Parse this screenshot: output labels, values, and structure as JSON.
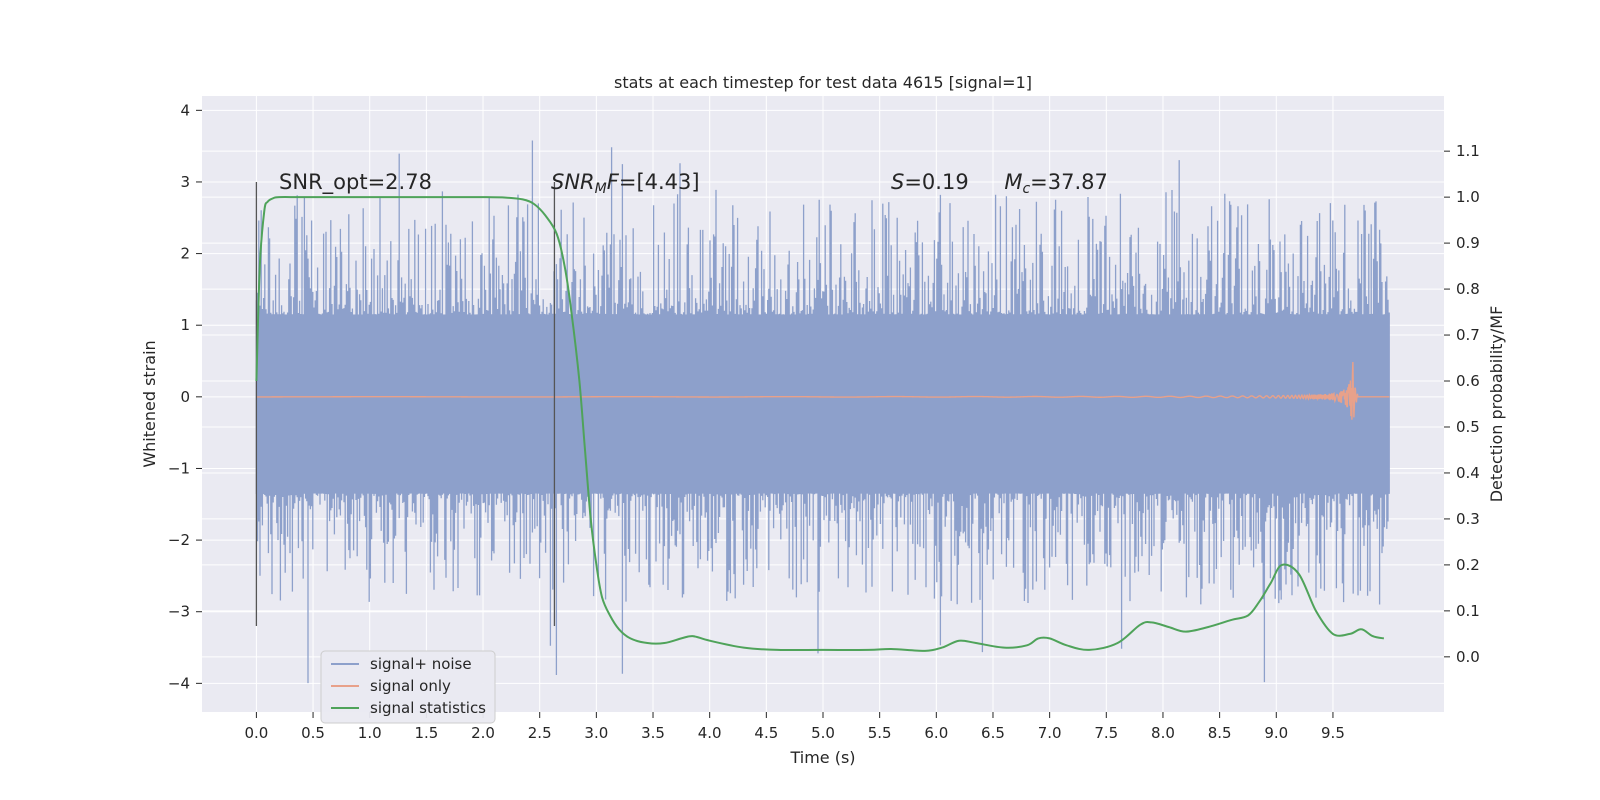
{
  "chart_data": {
    "type": "line",
    "title": "stats at each timestep for test data 4615 [signal=1]",
    "xlabel": "Time (s)",
    "ylabel": "Whitened strain",
    "y2label": "Detection probability/MF",
    "xlim": [
      -0.48,
      10.48
    ],
    "ylim": [
      -4.4,
      4.2
    ],
    "y2lim": [
      -0.12,
      1.22
    ],
    "x_ticks": [
      "0.0",
      "0.5",
      "1.0",
      "1.5",
      "2.0",
      "2.5",
      "3.0",
      "3.5",
      "4.0",
      "4.5",
      "5.0",
      "5.5",
      "6.0",
      "6.5",
      "7.0",
      "7.5",
      "8.0",
      "8.5",
      "9.0",
      "9.5"
    ],
    "y_ticks": [
      "4",
      "3",
      "2",
      "1",
      "0",
      "−1",
      "−2",
      "−3",
      "−4"
    ],
    "y2_ticks": [
      "1.1",
      "1.0",
      "0.9",
      "0.8",
      "0.7",
      "0.6",
      "0.5",
      "0.4",
      "0.3",
      "0.2",
      "0.1",
      "0.0"
    ],
    "grid": true,
    "legend_position": "lower-left",
    "annotations": [
      {
        "x": 0.2,
        "y": 3.0,
        "text_parts": [
          {
            "t": "SNR_opt=2.78",
            "i": false
          }
        ]
      },
      {
        "x": 2.6,
        "y": 3.0,
        "text_parts": [
          {
            "t": "SNR",
            "i": true
          },
          {
            "t": "M",
            "i": true,
            "sub": true
          },
          {
            "t": "F",
            "i": true
          },
          {
            "t": "=[4.43]",
            "i": false
          }
        ]
      },
      {
        "x": 5.6,
        "y": 3.0,
        "text_parts": [
          {
            "t": "S",
            "i": true
          },
          {
            "t": "=0.19",
            "i": false
          }
        ]
      },
      {
        "x": 6.6,
        "y": 3.0,
        "text_parts": [
          {
            "t": "M",
            "i": true
          },
          {
            "t": "c",
            "i": true,
            "sub": true
          },
          {
            "t": "=37.87",
            "i": false
          }
        ]
      }
    ],
    "vlines": [
      {
        "x": 0.0,
        "ymin": -3.2,
        "ymax": 3.0
      },
      {
        "x": 2.63,
        "ymin": -3.2,
        "ymax": 3.0
      }
    ],
    "series": [
      {
        "name": "signal+ noise",
        "color": "#8da0cb",
        "axis": "left",
        "kind": "noise",
        "x_range": [
          0.0,
          10.0
        ],
        "core_band": [
          -1.35,
          1.15
        ],
        "typical_extreme": [
          -2.0,
          2.0
        ],
        "max_spike": [
          -4.05,
          3.6
        ]
      },
      {
        "name": "signal only",
        "color": "#e8a18a",
        "axis": "left",
        "kind": "chirp",
        "x_range": [
          0.0,
          10.0
        ],
        "merger_time": 9.67,
        "peak_amplitude": 0.72
      },
      {
        "name": "signal statistics",
        "color": "#4fa35a",
        "axis": "right",
        "x": [
          0.0,
          0.03,
          0.07,
          0.1,
          0.15,
          0.2,
          0.4,
          0.8,
          1.2,
          1.6,
          2.0,
          2.2,
          2.35,
          2.45,
          2.55,
          2.65,
          2.72,
          2.78,
          2.85,
          2.9,
          2.95,
          3.0,
          3.05,
          3.12,
          3.2,
          3.3,
          3.45,
          3.6,
          3.75,
          3.85,
          4.0,
          4.3,
          4.6,
          5.0,
          5.4,
          5.6,
          5.9,
          6.05,
          6.2,
          6.35,
          6.6,
          6.8,
          6.9,
          7.0,
          7.15,
          7.35,
          7.6,
          7.8,
          7.9,
          8.05,
          8.2,
          8.4,
          8.6,
          8.75,
          8.85,
          8.95,
          9.05,
          9.2,
          9.35,
          9.5,
          9.65,
          9.75,
          9.85,
          9.95
        ],
        "values": [
          0.6,
          0.85,
          0.97,
          0.99,
          0.998,
          1.0,
          1.0,
          1.0,
          1.0,
          1.0,
          1.0,
          0.999,
          0.995,
          0.985,
          0.96,
          0.92,
          0.85,
          0.75,
          0.6,
          0.45,
          0.3,
          0.2,
          0.13,
          0.09,
          0.06,
          0.04,
          0.03,
          0.03,
          0.04,
          0.045,
          0.035,
          0.02,
          0.015,
          0.015,
          0.015,
          0.017,
          0.013,
          0.02,
          0.035,
          0.03,
          0.02,
          0.025,
          0.04,
          0.04,
          0.025,
          0.015,
          0.03,
          0.07,
          0.075,
          0.065,
          0.055,
          0.065,
          0.08,
          0.09,
          0.12,
          0.16,
          0.2,
          0.18,
          0.1,
          0.05,
          0.05,
          0.06,
          0.045,
          0.04
        ]
      }
    ]
  }
}
